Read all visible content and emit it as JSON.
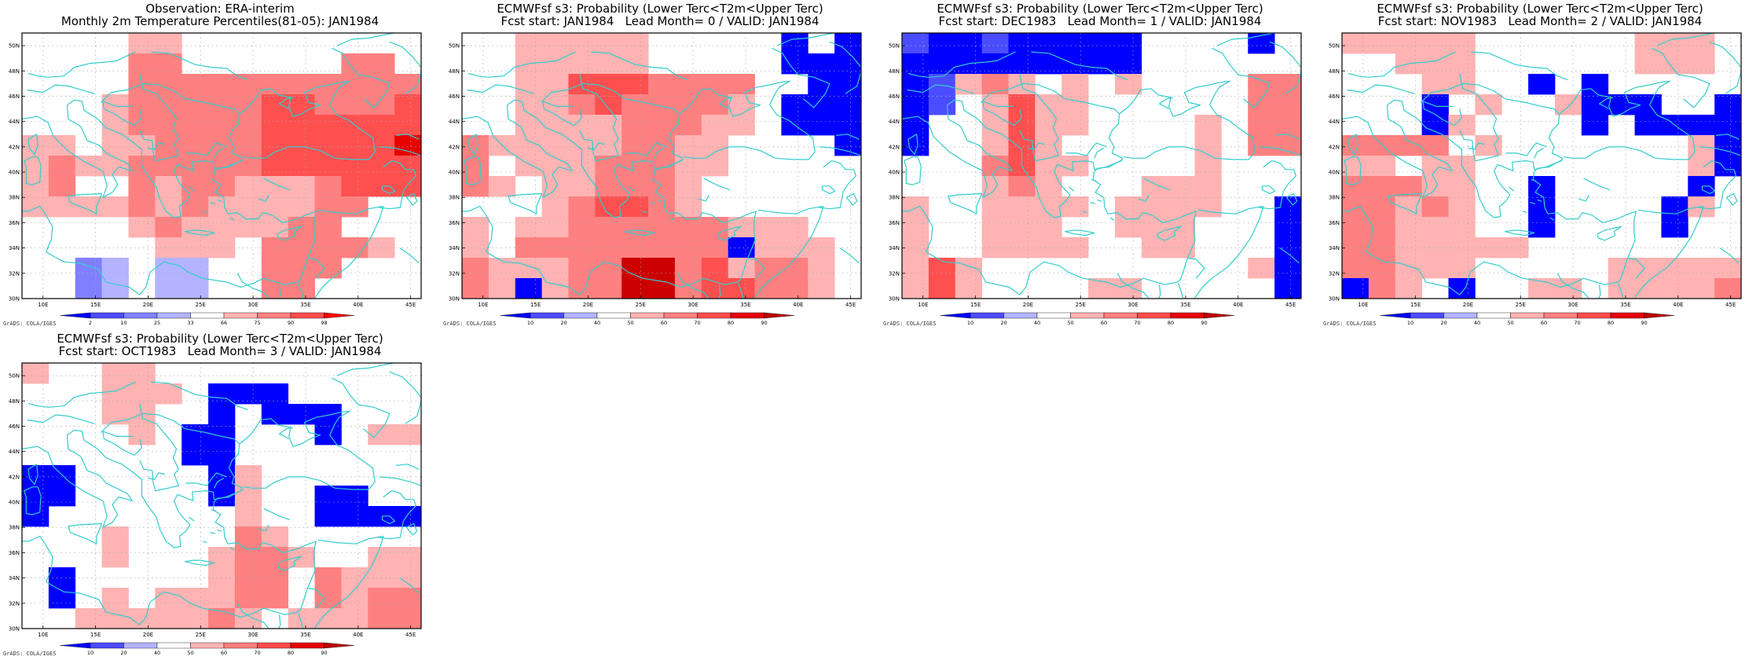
{
  "panels": [
    {
      "title_line1": "Observation: ERA-interim",
      "title_line2": "Monthly 2m Temperature Percentiles(81-05): JAN1984",
      "colorbar": {
        "labels": [
          "2",
          "10",
          "25",
          "33",
          "66",
          "75",
          "90",
          "98"
        ],
        "colors": [
          "#0000ff",
          "#4c4cff",
          "#8080ff",
          "#b3b3ff",
          "#ffffff",
          "#ffb3b3",
          "#ff8080",
          "#ff4c4c",
          "#ff0000"
        ]
      }
    },
    {
      "title_line1": "ECMWFsf s3: Probability (Lower Terc<T2m<Upper Terc)",
      "title_line2": "Fcst start: JAN1984   Lead Month= 0 / VALID: JAN1984",
      "colorbar": {
        "labels": [
          "10",
          "20",
          "40",
          "50",
          "60",
          "70",
          "80",
          "90"
        ],
        "colors": [
          "#0000ff",
          "#4c4cff",
          "#b3b3ff",
          "#ffffff",
          "#ffb3b3",
          "#ff8080",
          "#ff4c4c",
          "#e60000",
          "#c00000"
        ]
      }
    },
    {
      "title_line1": "ECMWFsf s3: Probability (Lower Terc<T2m<Upper Terc)",
      "title_line2": "Fcst start: DEC1983   Lead Month= 1 / VALID: JAN1984",
      "colorbar": {
        "labels": [
          "10",
          "20",
          "40",
          "50",
          "60",
          "70",
          "80",
          "90"
        ],
        "colors": [
          "#0000ff",
          "#4c4cff",
          "#b3b3ff",
          "#ffffff",
          "#ffb3b3",
          "#ff8080",
          "#ff4c4c",
          "#e60000",
          "#c00000"
        ]
      }
    },
    {
      "title_line1": "ECMWFsf s3: Probability (Lower Terc<T2m<Upper Terc)",
      "title_line2": "Fcst start: NOV1983   Lead Month= 2 / VALID: JAN1984",
      "colorbar": {
        "labels": [
          "10",
          "20",
          "40",
          "50",
          "60",
          "70",
          "80",
          "90"
        ],
        "colors": [
          "#0000ff",
          "#4c4cff",
          "#b3b3ff",
          "#ffffff",
          "#ffb3b3",
          "#ff8080",
          "#ff4c4c",
          "#e60000",
          "#c00000"
        ]
      }
    },
    {
      "title_line1": "ECMWFsf s3: Probability (Lower Terc<T2m<Upper Terc)",
      "title_line2": "Fcst start: OCT1983   Lead Month= 3 / VALID: JAN1984",
      "colorbar": {
        "labels": [
          "10",
          "20",
          "40",
          "50",
          "60",
          "70",
          "80",
          "90"
        ],
        "colors": [
          "#0000ff",
          "#4c4cff",
          "#b3b3ff",
          "#ffffff",
          "#ffb3b3",
          "#ff8080",
          "#ff4c4c",
          "#e60000",
          "#c00000"
        ]
      }
    }
  ],
  "map": {
    "lon_range": [
      8,
      46
    ],
    "lat_range": [
      30,
      51
    ],
    "lon_ticks": [
      "10E",
      "15E",
      "20E",
      "25E",
      "30E",
      "35E",
      "40E",
      "45E"
    ],
    "lat_ticks": [
      "30N",
      "32N",
      "34N",
      "36N",
      "38N",
      "40N",
      "42N",
      "44N",
      "46N",
      "48N",
      "50N"
    ],
    "coast_color": "#33cccc",
    "grid_color": "#aaaaaa"
  },
  "credit": "GrADS: COLA/IGES",
  "palette": {
    "X": "#0000ff",
    "B": "#4c4cff",
    "C": "#8080ff",
    "D": "#b3b3ff",
    "W": "#ffffff",
    "P": "#ffb3b3",
    "Q": "#ff8080",
    "R": "#ff5050",
    "S": "#e60000",
    "T": "#cc0000"
  },
  "fields": [
    [
      "WWWWPPWWWWWWWWW",
      "WWWWQQWWWWWWQQW",
      "WWWWQQQQQQQQQQQ",
      "WWWPQQQQQRRQQQR",
      "WWWPQQQQQRRRRRR",
      "PPWPPQQQQRRRRRS",
      "PQPPQQQQQRRRRRR",
      "PQWWQPQQPPPQRRR",
      "PPPPQPQPPPPQQWW",
      "WWWWPQPPPPQQWWW",
      "WWWWWPPPWQQQQPW",
      "WWCDWDDWWQQQWWW",
      "WWCDWDDWWQQWWWW"
    ],
    [
      "WWPPPPPWWWWWXWX",
      "WWPPPPPWWWWWXXX",
      "WWPPRRRQQQQWWXX",
      "WWPPQRQQQQPWXXX",
      "WWPPPPQQQPPWXXX",
      "QPPPPPQQPPWWWWX",
      "QWPPPQQQPPWWWWW",
      "QPWPPQQQPWWWWWW",
      "WWWPQRRQPWWWWWW",
      "PWPPQQQQQQPPPWW",
      "PWQQQQQQQQXPPPW",
      "QPPPQQTTQRPQQPW",
      "QPXPQQTTQRRQQPW"
    ],
    [
      "BXXBXXXXXWWWWXW",
      "XXXXXXXXXWWWWWW",
      "XBPQPWPWPWWWWQQ",
      "XBWPRPPWWWWWWQQ",
      "XWWPRPPWWWWPWQQ",
      "XWWPRPWWWWWPWQQ",
      "WWWQRPPWWWWPWWW",
      "WWWPQPWWWPPPWWW",
      "PWWPPPPWPPPPWWX",
      "PWWPPPWWPPPWWWX",
      "PWWPPPPWWPPWWWX",
      "PRPWWWWWWWWWWPX",
      "PRPWWWWPPWWWWWX"
    ],
    [
      "PPPPPWWWWWWPPPW",
      "WWPPPWWWWWWPPPW",
      "WWWPPWWXWXWWWWW",
      "WWWXWPWWPXXXWWX",
      "WWWXPWWWWXWXXXX",
      "QQQQWPWWWWWWWPX",
      "PPWPPWWWWWWWWPX",
      "QQQPPWWXWWWWWXW",
      "QQPQPWWXWWWWXPW",
      "QQPPPWWXWWWWXWW",
      "QQPPPPPWWWWWWWW",
      "QQPPPWWWWWPPPPP",
      "XQPWXWWPPWPPPPQ"
    ],
    [
      "PWWPPWWWWWWWWWW",
      "WWWPPPWXXXWWWWW",
      "WWWPPWWXWXXXWWW",
      "WWWWPWXXWWWXWPP",
      "WWWWWWXXWWWWWWW",
      "XXWWWWWXPWWWWWW",
      "XXWWWWWXPWWXXWW",
      "XWWWWWWWPWWXXXX",
      "WWWPWWWWQPWWWWW",
      "WWWPWWWPQQPWWPP",
      "WXWWWWWPQQWQPPP",
      "WXWPWPPPQQWQPQQ",
      "WWPPPPPQPWPPPQQ"
    ]
  ]
}
